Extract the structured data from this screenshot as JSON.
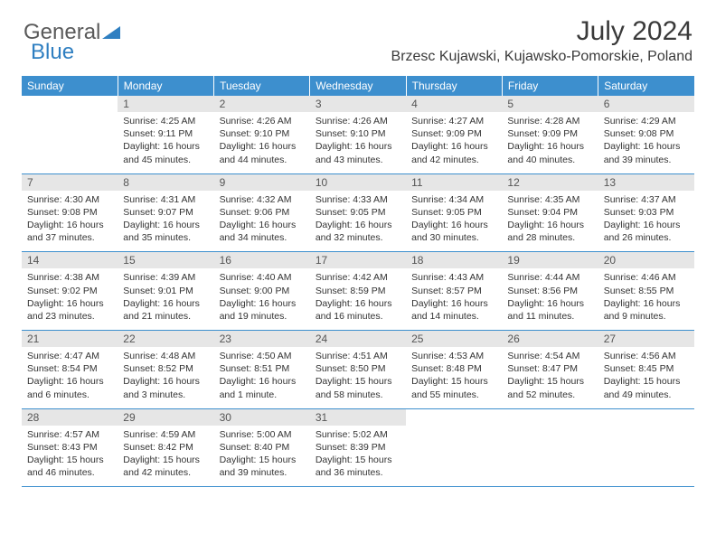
{
  "logo": {
    "text1": "General",
    "text2": "Blue",
    "color1": "#5a5a5a",
    "color2": "#2f7fc1"
  },
  "title": "July 2024",
  "location": "Brzesc Kujawski, Kujawsko-Pomorskie, Poland",
  "header_bg": "#3d8fce",
  "daynum_bg": "#e6e6e6",
  "divider_color": "#3d8fce",
  "weekdays": [
    "Sunday",
    "Monday",
    "Tuesday",
    "Wednesday",
    "Thursday",
    "Friday",
    "Saturday"
  ],
  "weeks": [
    [
      null,
      {
        "n": "1",
        "sunrise": "4:25 AM",
        "sunset": "9:11 PM",
        "daylight": "16 hours and 45 minutes."
      },
      {
        "n": "2",
        "sunrise": "4:26 AM",
        "sunset": "9:10 PM",
        "daylight": "16 hours and 44 minutes."
      },
      {
        "n": "3",
        "sunrise": "4:26 AM",
        "sunset": "9:10 PM",
        "daylight": "16 hours and 43 minutes."
      },
      {
        "n": "4",
        "sunrise": "4:27 AM",
        "sunset": "9:09 PM",
        "daylight": "16 hours and 42 minutes."
      },
      {
        "n": "5",
        "sunrise": "4:28 AM",
        "sunset": "9:09 PM",
        "daylight": "16 hours and 40 minutes."
      },
      {
        "n": "6",
        "sunrise": "4:29 AM",
        "sunset": "9:08 PM",
        "daylight": "16 hours and 39 minutes."
      }
    ],
    [
      {
        "n": "7",
        "sunrise": "4:30 AM",
        "sunset": "9:08 PM",
        "daylight": "16 hours and 37 minutes."
      },
      {
        "n": "8",
        "sunrise": "4:31 AM",
        "sunset": "9:07 PM",
        "daylight": "16 hours and 35 minutes."
      },
      {
        "n": "9",
        "sunrise": "4:32 AM",
        "sunset": "9:06 PM",
        "daylight": "16 hours and 34 minutes."
      },
      {
        "n": "10",
        "sunrise": "4:33 AM",
        "sunset": "9:05 PM",
        "daylight": "16 hours and 32 minutes."
      },
      {
        "n": "11",
        "sunrise": "4:34 AM",
        "sunset": "9:05 PM",
        "daylight": "16 hours and 30 minutes."
      },
      {
        "n": "12",
        "sunrise": "4:35 AM",
        "sunset": "9:04 PM",
        "daylight": "16 hours and 28 minutes."
      },
      {
        "n": "13",
        "sunrise": "4:37 AM",
        "sunset": "9:03 PM",
        "daylight": "16 hours and 26 minutes."
      }
    ],
    [
      {
        "n": "14",
        "sunrise": "4:38 AM",
        "sunset": "9:02 PM",
        "daylight": "16 hours and 23 minutes."
      },
      {
        "n": "15",
        "sunrise": "4:39 AM",
        "sunset": "9:01 PM",
        "daylight": "16 hours and 21 minutes."
      },
      {
        "n": "16",
        "sunrise": "4:40 AM",
        "sunset": "9:00 PM",
        "daylight": "16 hours and 19 minutes."
      },
      {
        "n": "17",
        "sunrise": "4:42 AM",
        "sunset": "8:59 PM",
        "daylight": "16 hours and 16 minutes."
      },
      {
        "n": "18",
        "sunrise": "4:43 AM",
        "sunset": "8:57 PM",
        "daylight": "16 hours and 14 minutes."
      },
      {
        "n": "19",
        "sunrise": "4:44 AM",
        "sunset": "8:56 PM",
        "daylight": "16 hours and 11 minutes."
      },
      {
        "n": "20",
        "sunrise": "4:46 AM",
        "sunset": "8:55 PM",
        "daylight": "16 hours and 9 minutes."
      }
    ],
    [
      {
        "n": "21",
        "sunrise": "4:47 AM",
        "sunset": "8:54 PM",
        "daylight": "16 hours and 6 minutes."
      },
      {
        "n": "22",
        "sunrise": "4:48 AM",
        "sunset": "8:52 PM",
        "daylight": "16 hours and 3 minutes."
      },
      {
        "n": "23",
        "sunrise": "4:50 AM",
        "sunset": "8:51 PM",
        "daylight": "16 hours and 1 minute."
      },
      {
        "n": "24",
        "sunrise": "4:51 AM",
        "sunset": "8:50 PM",
        "daylight": "15 hours and 58 minutes."
      },
      {
        "n": "25",
        "sunrise": "4:53 AM",
        "sunset": "8:48 PM",
        "daylight": "15 hours and 55 minutes."
      },
      {
        "n": "26",
        "sunrise": "4:54 AM",
        "sunset": "8:47 PM",
        "daylight": "15 hours and 52 minutes."
      },
      {
        "n": "27",
        "sunrise": "4:56 AM",
        "sunset": "8:45 PM",
        "daylight": "15 hours and 49 minutes."
      }
    ],
    [
      {
        "n": "28",
        "sunrise": "4:57 AM",
        "sunset": "8:43 PM",
        "daylight": "15 hours and 46 minutes."
      },
      {
        "n": "29",
        "sunrise": "4:59 AM",
        "sunset": "8:42 PM",
        "daylight": "15 hours and 42 minutes."
      },
      {
        "n": "30",
        "sunrise": "5:00 AM",
        "sunset": "8:40 PM",
        "daylight": "15 hours and 39 minutes."
      },
      {
        "n": "31",
        "sunrise": "5:02 AM",
        "sunset": "8:39 PM",
        "daylight": "15 hours and 36 minutes."
      },
      null,
      null,
      null
    ]
  ],
  "labels": {
    "sunrise": "Sunrise:",
    "sunset": "Sunset:",
    "daylight": "Daylight:"
  }
}
